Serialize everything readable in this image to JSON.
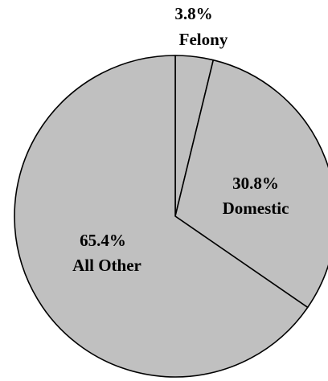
{
  "chart_data": {
    "type": "pie",
    "title": "",
    "slices": [
      {
        "label": "Felony",
        "value": 3.8,
        "value_label": "3.8%"
      },
      {
        "label": "Domestic",
        "value": 30.8,
        "value_label": "30.8%"
      },
      {
        "label": "All Other",
        "value": 65.4,
        "value_label": "65.4%"
      }
    ],
    "start_angle": "12 o'clock",
    "direction": "clockwise",
    "colors": {
      "fill": "#c0c0c0",
      "stroke": "#000000",
      "background": "#ffffff"
    },
    "legend": "none"
  }
}
